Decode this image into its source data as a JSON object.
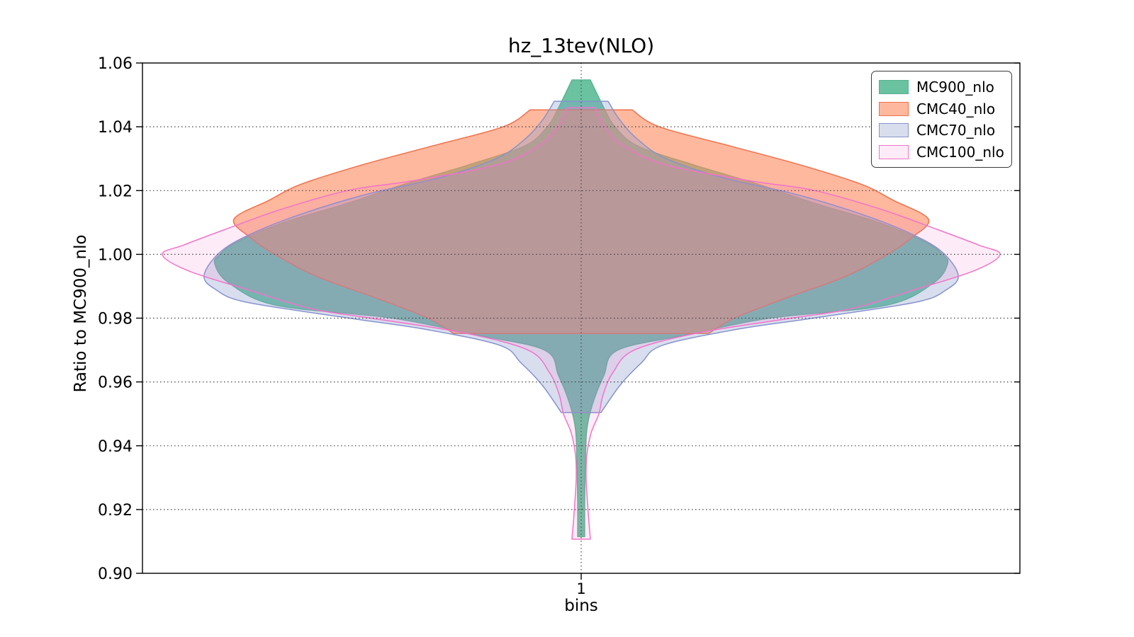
{
  "title": "hz_13tev(NLO)",
  "axes": {
    "ylabel": "Ratio to MC900_nlo",
    "xlabel": "bins",
    "xticks": [
      "1"
    ],
    "ytick_labels": [
      "0.90",
      "0.92",
      "0.94",
      "0.96",
      "0.98",
      "1.00",
      "1.02",
      "1.04",
      "1.06"
    ],
    "ytick_values": [
      0.9,
      0.92,
      0.94,
      0.96,
      0.98,
      1.0,
      1.02,
      1.04,
      1.06
    ],
    "grid_yvalues": [
      0.92,
      0.94,
      0.96,
      0.98,
      1.0,
      1.02,
      1.04
    ],
    "grid": true,
    "grid_style": "dotted",
    "frame_color": "#000000",
    "grid_color": "#444444"
  },
  "legend": {
    "position": "upper right",
    "entries": [
      {
        "label": "MC900_nlo"
      },
      {
        "label": "CMC40_nlo"
      },
      {
        "label": "CMC70_nlo"
      },
      {
        "label": "CMC100_nlo"
      }
    ]
  },
  "chart_data": {
    "type": "violin",
    "title": "hz_13tev(NLO)",
    "xlabel": "bins",
    "ylabel": "Ratio to MC900_nlo",
    "x_category": "1",
    "ylim": [
      0.9,
      1.06
    ],
    "note": "profiles are [ratio_value, half_width_px] pairs top-to-bottom, symmetric about bin center",
    "series": [
      {
        "name": "MC900_nlo",
        "fill": "rgba(95,189,154,0.93)",
        "edge": "#54B08E",
        "edge_width": 1.3,
        "profile": [
          [
            1.0547,
            13
          ],
          [
            1.046,
            32
          ],
          [
            1.04,
            48
          ],
          [
            1.034,
            80
          ],
          [
            1.028,
            160
          ],
          [
            1.022,
            250
          ],
          [
            1.016,
            330
          ],
          [
            1.01,
            420
          ],
          [
            1.004,
            485
          ],
          [
            1.0,
            510
          ],
          [
            0.997,
            517
          ],
          [
            0.991,
            497
          ],
          [
            0.984,
            430
          ],
          [
            0.98,
            267
          ],
          [
            0.9748,
            150
          ],
          [
            0.97,
            52
          ],
          [
            0.962,
            32
          ],
          [
            0.953,
            16
          ],
          [
            0.945,
            8
          ],
          [
            0.934,
            6
          ],
          [
            0.922,
            5
          ],
          [
            0.9115,
            5
          ]
        ]
      },
      {
        "name": "CMC40_nlo",
        "fill": "rgba(252,141,98,0.62)",
        "edge": "#F0704A",
        "edge_width": 1.5,
        "profile": [
          [
            1.0453,
            72
          ],
          [
            1.04,
            110
          ],
          [
            1.034,
            210
          ],
          [
            1.028,
            310
          ],
          [
            1.022,
            395
          ],
          [
            1.017,
            440
          ],
          [
            1.011,
            490
          ],
          [
            1.005,
            465
          ],
          [
            1.0,
            432
          ],
          [
            0.993,
            372
          ],
          [
            0.986,
            285
          ],
          [
            0.98,
            216
          ],
          [
            0.9752,
            180
          ]
        ]
      },
      {
        "name": "CMC70_nlo",
        "fill": "rgba(140,155,205,0.33)",
        "edge": "#8693CB",
        "edge_width": 1.5,
        "profile": [
          [
            1.048,
            38
          ],
          [
            1.042,
            55
          ],
          [
            1.036,
            80
          ],
          [
            1.03,
            120
          ],
          [
            1.024,
            200
          ],
          [
            1.019,
            300
          ],
          [
            1.013,
            390
          ],
          [
            1.007,
            460
          ],
          [
            1.001,
            508
          ],
          [
            0.9935,
            532
          ],
          [
            0.989,
            516
          ],
          [
            0.985,
            472
          ],
          [
            0.98,
            327
          ],
          [
            0.9765,
            220
          ],
          [
            0.9715,
            115
          ],
          [
            0.966,
            85
          ],
          [
            0.959,
            55
          ],
          [
            0.9504,
            28
          ]
        ]
      },
      {
        "name": "CMC100_nlo",
        "fill": "rgba(240,110,196,0.13)",
        "edge": "#F273C8",
        "edge_width": 1.5,
        "profile": [
          [
            1.046,
            20
          ],
          [
            1.04,
            33
          ],
          [
            1.034,
            60
          ],
          [
            1.028,
            120
          ],
          [
            1.023,
            240
          ],
          [
            1.02,
            330
          ],
          [
            1.014,
            425
          ],
          [
            1.008,
            500
          ],
          [
            1.003,
            560
          ],
          [
            1.0,
            591
          ],
          [
            0.995,
            556
          ],
          [
            0.989,
            472
          ],
          [
            0.983,
            382
          ],
          [
            0.98,
            297
          ],
          [
            0.9755,
            168
          ],
          [
            0.97,
            75
          ],
          [
            0.963,
            45
          ],
          [
            0.956,
            31
          ],
          [
            0.95,
            25
          ],
          [
            0.944,
            14
          ],
          [
            0.937,
            8
          ],
          [
            0.93,
            7
          ],
          [
            0.922,
            9
          ],
          [
            0.916,
            11
          ],
          [
            0.9107,
            13
          ]
        ]
      }
    ]
  }
}
